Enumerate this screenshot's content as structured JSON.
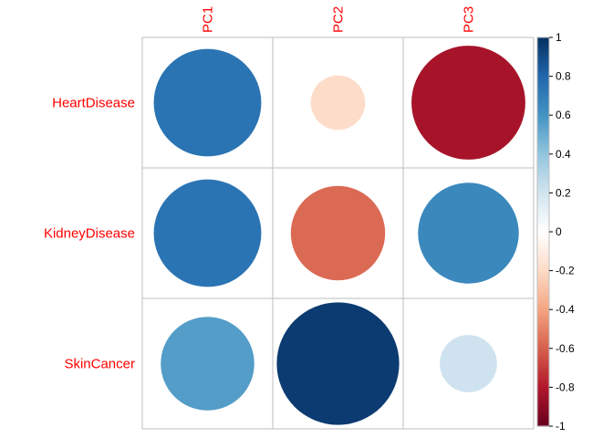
{
  "chart_data": {
    "type": "heatmap",
    "style": "corrplot-circle",
    "rows": [
      "HeartDisease",
      "KidneyDisease",
      "SkinCancer"
    ],
    "cols": [
      "PC1",
      "PC2",
      "PC3"
    ],
    "values": [
      [
        0.74,
        -0.19,
        -0.83
      ],
      [
        0.74,
        -0.57,
        0.65
      ],
      [
        0.56,
        0.96,
        0.21
      ]
    ],
    "colorbar": {
      "range": [
        -1,
        1
      ],
      "ticks": [
        "-1",
        "-0.8",
        "-0.6",
        "-0.4",
        "-0.2",
        "0",
        "0.2",
        "0.4",
        "0.6",
        "0.8",
        "1"
      ],
      "tick_values": [
        -1,
        -0.8,
        -0.6,
        -0.4,
        -0.2,
        0,
        0.2,
        0.4,
        0.6,
        0.8,
        1
      ],
      "colors": [
        "#67001F",
        "#B2182B",
        "#D6604D",
        "#F4A582",
        "#FDDBC7",
        "#FFFFFF",
        "#D1E5F0",
        "#92C5DE",
        "#4393C3",
        "#2166AC",
        "#053061"
      ]
    },
    "label_color": "#FF0000",
    "grid_color": "#BEBEBE"
  }
}
